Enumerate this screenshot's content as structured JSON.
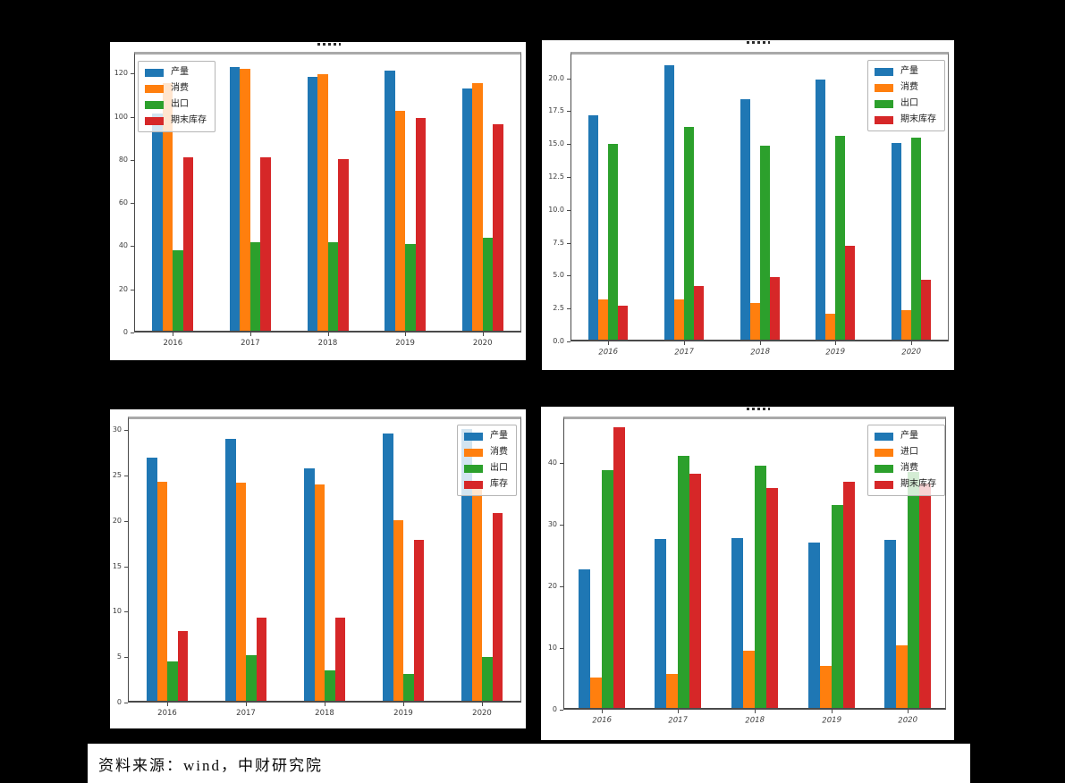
{
  "page": {
    "background": "#000000",
    "panel_background": "#ffffff"
  },
  "colors": {
    "blue": "#1f77b4",
    "orange": "#ff7f0e",
    "green": "#2ca02c",
    "red": "#d62728"
  },
  "source_bar": {
    "text": "资料来源：wind，中财研究院"
  },
  "chart_data": [
    {
      "id": "top-left",
      "type": "bar",
      "title_visible": false,
      "categories": [
        "2016",
        "2017",
        "2018",
        "2019",
        "2020"
      ],
      "series": [
        {
          "name": "产量",
          "color": "#1f77b4",
          "values": [
            101.5,
            123,
            118.5,
            121.5,
            113
          ]
        },
        {
          "name": "消费",
          "color": "#ff7f0e",
          "values": [
            115.5,
            122,
            119.5,
            102.5,
            115.5
          ]
        },
        {
          "name": "出口",
          "color": "#2ca02c",
          "values": [
            38,
            42,
            42,
            41,
            44
          ]
        },
        {
          "name": "期末库存",
          "color": "#d62728",
          "values": [
            81,
            81,
            80.5,
            99.5,
            96.5
          ]
        }
      ],
      "yticks": [
        0,
        20,
        40,
        60,
        80,
        100,
        120
      ],
      "yticklabels": [
        "0",
        "20",
        "40",
        "60",
        "80",
        "100",
        "120"
      ],
      "ylim": [
        0,
        130
      ],
      "grid": false,
      "legend_position": "top-left",
      "xtick_rotation": 0
    },
    {
      "id": "top-right",
      "type": "bar",
      "title_visible": false,
      "categories": [
        "2016",
        "2017",
        "2018",
        "2019",
        "2020"
      ],
      "series": [
        {
          "name": "产量",
          "color": "#1f77b4",
          "values": [
            17.2,
            21.0,
            18.4,
            19.9,
            15.1
          ]
        },
        {
          "name": "消费",
          "color": "#ff7f0e",
          "values": [
            3.2,
            3.2,
            2.9,
            2.1,
            2.4
          ]
        },
        {
          "name": "出口",
          "color": "#2ca02c",
          "values": [
            15.0,
            16.3,
            14.9,
            15.6,
            15.5
          ]
        },
        {
          "name": "期末库存",
          "color": "#d62728",
          "values": [
            2.7,
            4.2,
            4.9,
            7.3,
            4.7
          ]
        }
      ],
      "yticks": [
        0,
        2.5,
        5,
        7.5,
        10,
        12.5,
        15,
        17.5,
        20
      ],
      "yticklabels": [
        "0.0",
        "2.5",
        "5.0",
        "7.5",
        "10.0",
        "12.5",
        "15.0",
        "17.5",
        "20.0"
      ],
      "ylim": [
        0,
        22
      ],
      "grid": false,
      "legend_position": "top-right",
      "xtick_rotation": 12
    },
    {
      "id": "bottom-left",
      "type": "bar",
      "title_visible": false,
      "categories": [
        "2016",
        "2017",
        "2018",
        "2019",
        "2020"
      ],
      "series": [
        {
          "name": "产量",
          "color": "#1f77b4",
          "values": [
            27,
            29,
            25.8,
            29.6,
            30.1
          ]
        },
        {
          "name": "消费",
          "color": "#ff7f0e",
          "values": [
            24.3,
            24.2,
            24.0,
            20.1,
            23.8
          ]
        },
        {
          "name": "出口",
          "color": "#2ca02c",
          "values": [
            4.5,
            5.2,
            3.5,
            3.2,
            5.0
          ]
        },
        {
          "name": "库存",
          "color": "#d62728",
          "values": [
            7.9,
            9.4,
            9.4,
            17.9,
            20.9
          ]
        }
      ],
      "yticks": [
        0,
        5,
        10,
        15,
        20,
        25,
        30
      ],
      "yticklabels": [
        "0",
        "5",
        "10",
        "15",
        "20",
        "25",
        "30"
      ],
      "ylim": [
        0,
        31.5
      ],
      "grid": false,
      "legend_position": "top-right",
      "xtick_rotation": 0
    },
    {
      "id": "bottom-right",
      "type": "bar",
      "title_visible": false,
      "categories": [
        "2016",
        "2017",
        "2018",
        "2019",
        "2020"
      ],
      "series": [
        {
          "name": "产量",
          "color": "#1f77b4",
          "values": [
            22.8,
            27.6,
            27.8,
            27.1,
            27.5
          ]
        },
        {
          "name": "进口",
          "color": "#ff7f0e",
          "values": [
            5.2,
            5.8,
            9.6,
            7.1,
            10.4
          ]
        },
        {
          "name": "消费",
          "color": "#2ca02c",
          "values": [
            38.8,
            41.2,
            39.6,
            33.2,
            38.5
          ]
        },
        {
          "name": "期末库存",
          "color": "#d62728",
          "values": [
            45.8,
            38.2,
            35.9,
            37.0,
            36.7
          ]
        }
      ],
      "yticks": [
        0,
        10,
        20,
        30,
        40
      ],
      "yticklabels": [
        "0",
        "10",
        "20",
        "30",
        "40"
      ],
      "ylim": [
        0,
        47.5
      ],
      "grid": false,
      "legend_position": "top-right",
      "xtick_rotation": 12
    }
  ]
}
